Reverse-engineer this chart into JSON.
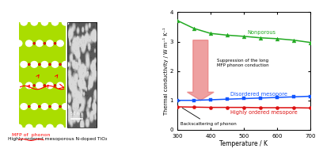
{
  "temp": [
    300,
    350,
    400,
    450,
    500,
    550,
    600,
    650,
    700
  ],
  "nonporous": [
    3.72,
    3.45,
    3.28,
    3.22,
    3.18,
    3.13,
    3.1,
    3.05,
    2.97
  ],
  "disordered": [
    1.0,
    1.0,
    1.02,
    1.04,
    1.06,
    1.08,
    1.1,
    1.12,
    1.14
  ],
  "ordered": [
    0.78,
    0.77,
    0.76,
    0.76,
    0.76,
    0.75,
    0.75,
    0.75,
    0.74
  ],
  "nonporous_color": "#22aa22",
  "disordered_color": "#1155ff",
  "ordered_color": "#dd1111",
  "arrow_color": "#e87878",
  "xlabel": "Temperature / K",
  "ylabel": "Thermal conductivity / W m⁻¹ K⁻¹",
  "ylim": [
    0,
    4
  ],
  "xlim": [
    300,
    700
  ],
  "label_nonporous": "Nonporous",
  "label_disordered": "Disordered mesopore",
  "label_ordered": "Highly ordered mesopore",
  "annotation1": "Suppression of the long\nMFP phonon conduction",
  "annotation2": "Backscattering of phonon",
  "left_label1": "MFP of  phonon",
  "left_label2": "Highly ordered mesoporous N-doped TiO₂",
  "scale_bar": "50 nm"
}
